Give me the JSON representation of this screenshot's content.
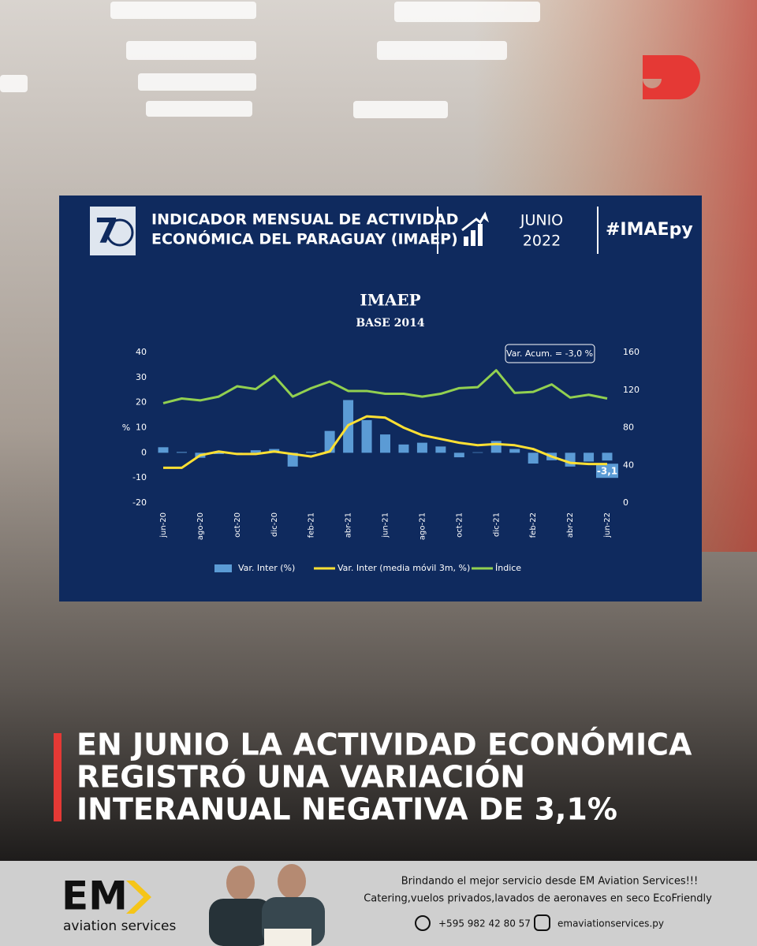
{
  "header": {
    "title_lines": [
      "INDICADOR MENSUAL DE ACTIVIDAD",
      "ECONÓMICA DEL PARAGUAY (IMAEP)"
    ],
    "month": "JUNIO",
    "year": "2022",
    "hashtag": "#IMAEpy"
  },
  "chart_data": {
    "type": "bar",
    "title": "IMAEP",
    "subtitle": "BASE 2014",
    "y_label": "%",
    "annotation": "Var. Acum. = -3,0 %",
    "categories": [
      "jun-20",
      null,
      "ago-20",
      null,
      "oct-20",
      null,
      "dic-20",
      null,
      "feb-21",
      null,
      "abr-21",
      null,
      "jun-21",
      null,
      "ago-21",
      null,
      "oct-21",
      null,
      "dic-21",
      null,
      "feb-22",
      null,
      "abr-22",
      null,
      "jun-22"
    ],
    "ylim": [
      -20,
      40
    ],
    "yticks": [
      -20,
      -10,
      0,
      10,
      20,
      30,
      40
    ],
    "y2lim": [
      0,
      160
    ],
    "y2ticks": [
      0,
      40,
      80,
      120,
      160
    ],
    "series": [
      {
        "name": "Var. Inter (%)",
        "type": "bar",
        "color": "#5b9bd5",
        "values": [
          2.2,
          0.3,
          -2,
          -0.5,
          -0.3,
          1,
          1.5,
          -5.5,
          0.4,
          8.7,
          21,
          13,
          7.3,
          3.3,
          4,
          2.5,
          -1.8,
          0.2,
          4.7,
          1.5,
          -4.3,
          -3,
          -5.5,
          -3.5,
          -3.1
        ],
        "value_labels": [
          null,
          null,
          null,
          null,
          null,
          null,
          null,
          null,
          null,
          null,
          null,
          null,
          null,
          null,
          null,
          null,
          null,
          null,
          null,
          null,
          null,
          null,
          null,
          null,
          "-3,1"
        ]
      },
      {
        "name": "Var. Inter (media móvil 3m, %)",
        "type": "line",
        "color": "#ffe033",
        "values": [
          -6,
          -6,
          -1,
          0.5,
          -0.5,
          -0.5,
          0.5,
          -0.5,
          -1.5,
          0.5,
          11,
          14.5,
          14,
          10,
          7,
          5.5,
          4,
          3,
          3.5,
          3,
          1.5,
          -1.5,
          -4,
          -4.5,
          -4.5
        ]
      },
      {
        "name": "Índice",
        "type": "line",
        "axis": "y2",
        "color": "#92d050",
        "values": [
          106,
          111,
          109,
          113,
          124,
          121,
          135,
          113,
          122,
          129,
          119,
          119,
          116,
          116,
          113,
          116,
          122,
          123,
          141,
          117,
          118,
          126,
          112,
          115,
          111
        ]
      }
    ]
  },
  "headline": [
    "EN JUNIO LA ACTIVIDAD ECONÓMICA",
    "REGISTRÓ UNA VARIACIÓN",
    "INTERANUAL NEGATIVA DE 3,1%"
  ],
  "footer": {
    "brand": "EM",
    "brand_sub": "aviation services",
    "lines": [
      "Brindando el mejor servicio desde EM Aviation Services!!!",
      "Catering,vuelos privados,lavados de aeronaves en seco EcoFriendly"
    ],
    "phone": "+595 982 42 80 57",
    "instagram": "emaviationservices.py"
  }
}
